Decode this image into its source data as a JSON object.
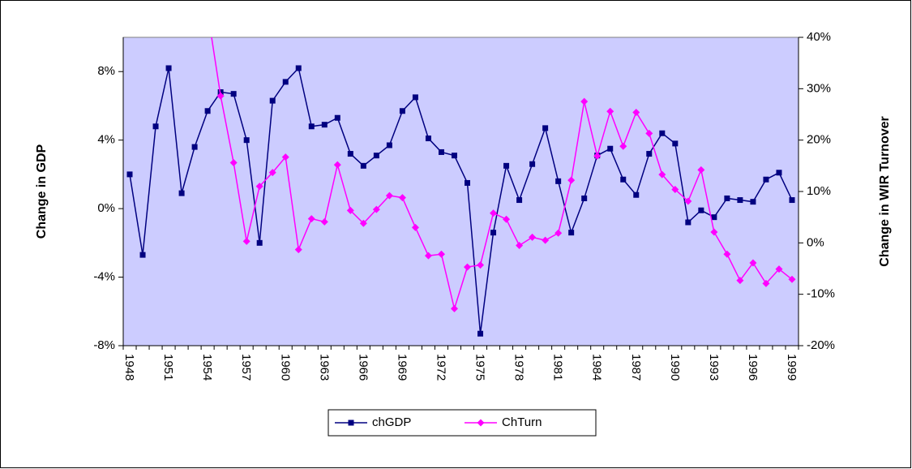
{
  "chart_data": {
    "type": "line",
    "categories": [
      "1948",
      null,
      null,
      "1951",
      null,
      null,
      "1954",
      null,
      null,
      "1957",
      null,
      null,
      "1960",
      null,
      null,
      "1963",
      null,
      null,
      "1966",
      null,
      null,
      "1969",
      null,
      null,
      "1972",
      null,
      null,
      "1975",
      null,
      null,
      "1978",
      null,
      null,
      "1981",
      null,
      null,
      "1984",
      null,
      null,
      "1987",
      null,
      null,
      "1990",
      null,
      null,
      "1993",
      null,
      null,
      "1996",
      null,
      null,
      "1999"
    ],
    "series": [
      {
        "name": "chGDP",
        "color": "#000080",
        "marker": "square",
        "values": [
          2.0,
          -2.7,
          4.8,
          8.2,
          0.9,
          3.6,
          5.7,
          6.8,
          6.7,
          4.0,
          -2.0,
          6.3,
          7.4,
          8.2,
          4.8,
          4.9,
          5.3,
          3.2,
          2.5,
          3.1,
          3.7,
          5.7,
          6.5,
          4.1,
          3.3,
          3.1,
          1.5,
          -7.3,
          -1.4,
          2.5,
          0.5,
          2.6,
          4.7,
          1.6,
          -1.4,
          0.6,
          3.1,
          3.5,
          1.7,
          0.8,
          3.2,
          4.4,
          3.8,
          -0.8,
          -0.1,
          -0.5,
          0.6,
          0.5,
          0.4,
          1.7,
          2.1,
          0.5
        ]
      },
      {
        "name": "ChTurn",
        "color": "#ff00ff",
        "marker": "diamond",
        "axis": "y2",
        "values": [
          null,
          null,
          null,
          null,
          null,
          null,
          45,
          28.6,
          15.6,
          0.3,
          11,
          13.7,
          16.7,
          -1.3,
          4.7,
          4.1,
          15.2,
          6.3,
          3.8,
          6.5,
          9.2,
          8.8,
          3.0,
          -2.5,
          -2.2,
          -12.8,
          -4.7,
          -4.3,
          5.8,
          4.6,
          -0.5,
          1.1,
          0.5,
          1.9,
          12.2,
          27.5,
          16.9,
          25.6,
          18.8,
          25.4,
          21.3,
          13.3,
          10.4,
          8.1,
          14.2,
          2.1,
          -2.2,
          -7.3,
          -3.9,
          -7.9,
          -5.1,
          -7.1
        ]
      }
    ],
    "ylabel": "Change in GDP",
    "y2label": "Change in WIR Turnover",
    "ylim": [
      -8,
      10
    ],
    "yticks": [
      {
        "value": -8,
        "label": "-8%"
      },
      {
        "value": -4,
        "label": "-4%"
      },
      {
        "value": 0,
        "label": "0%"
      },
      {
        "value": 4,
        "label": "4%"
      },
      {
        "value": 8,
        "label": "8%"
      }
    ],
    "y2lim": [
      -20,
      40
    ],
    "y2ticks": [
      {
        "value": -20,
        "label": "-20%"
      },
      {
        "value": -10,
        "label": "-10%"
      },
      {
        "value": 0,
        "label": "0%"
      },
      {
        "value": 10,
        "label": "10%"
      },
      {
        "value": 20,
        "label": "20%"
      },
      {
        "value": 30,
        "label": "30%"
      },
      {
        "value": 40,
        "label": "40%"
      }
    ],
    "legend": "bottom",
    "plot_background": "#ccccff"
  }
}
